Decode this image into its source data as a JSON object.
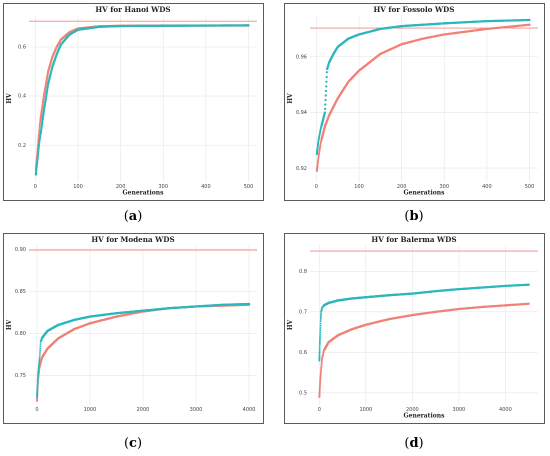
{
  "colors": {
    "series1": "#f08278",
    "series2": "#2bb7bd",
    "reference": "#ee8a86",
    "grid": "#e6e6e6",
    "frame": "#333333"
  },
  "chart_data": [
    {
      "type": "scatter",
      "title": "HV for Hanoi WDS",
      "xlabel": "Generations",
      "ylabel": "HV",
      "xlim": [
        -15,
        520
      ],
      "ylim": [
        0.05,
        0.73
      ],
      "xticks": [
        0,
        100,
        200,
        300,
        400,
        500
      ],
      "yticks": [
        0.2,
        0.4,
        0.6
      ],
      "ytick_labels": [
        "0.2",
        "0.4",
        "0.6"
      ],
      "reference_line": 0.705,
      "x_max": 500,
      "grid": true,
      "caption_letter": "a",
      "series": [
        {
          "x": [
            1,
            5,
            10,
            20,
            30,
            40,
            50,
            60,
            80,
            100,
            150,
            200,
            300,
            400,
            500
          ],
          "values": [
            0.1,
            0.18,
            0.28,
            0.4,
            0.5,
            0.56,
            0.6,
            0.63,
            0.66,
            0.675,
            0.684,
            0.686,
            0.687,
            0.687,
            0.687
          ]
        },
        {
          "x": [
            1,
            5,
            10,
            20,
            30,
            40,
            50,
            60,
            80,
            100,
            150,
            200,
            300,
            400,
            500
          ],
          "values": [
            0.08,
            0.14,
            0.22,
            0.34,
            0.45,
            0.52,
            0.57,
            0.61,
            0.65,
            0.67,
            0.682,
            0.685,
            0.686,
            0.687,
            0.688
          ]
        }
      ]
    },
    {
      "type": "scatter",
      "title": "HV for Fossolo WDS",
      "xlabel": "Generations",
      "ylabel": "HV",
      "xlim": [
        -15,
        520
      ],
      "ylim": [
        0.915,
        0.975
      ],
      "xticks": [
        0,
        100,
        200,
        300,
        400,
        500
      ],
      "yticks": [
        0.92,
        0.94,
        0.96
      ],
      "ytick_labels": [
        "0.92",
        "0.94",
        "0.96"
      ],
      "reference_line": 0.9703,
      "x_max": 500,
      "grid": true,
      "caption_letter": "b",
      "series": [
        {
          "x": [
            1,
            5,
            10,
            20,
            30,
            50,
            75,
            100,
            150,
            200,
            250,
            300,
            400,
            500
          ],
          "values": [
            0.919,
            0.924,
            0.929,
            0.935,
            0.939,
            0.945,
            0.951,
            0.955,
            0.961,
            0.9645,
            0.9665,
            0.968,
            0.97,
            0.9715
          ]
        },
        {
          "x": [
            1,
            5,
            10,
            15,
            20,
            25,
            30,
            40,
            50,
            75,
            100,
            150,
            200,
            300,
            400,
            500
          ],
          "values": [
            0.925,
            0.93,
            0.934,
            0.937,
            0.94,
            0.9555,
            0.958,
            0.961,
            0.9635,
            0.9665,
            0.968,
            0.97,
            0.971,
            0.972,
            0.9728,
            0.9732
          ]
        }
      ]
    },
    {
      "type": "scatter",
      "title": "HV for Modena WDS",
      "xlabel": "",
      "ylabel": "HV",
      "xlim": [
        -150,
        4150
      ],
      "ylim": [
        0.715,
        0.905
      ],
      "xticks": [
        0,
        1000,
        2000,
        3000,
        4000
      ],
      "yticks": [
        0.75,
        0.8,
        0.85,
        0.9
      ],
      "ytick_labels": [
        "0.75",
        "0.80",
        "0.85",
        "0.90"
      ],
      "reference_line": 0.899,
      "x_max": 4000,
      "grid": true,
      "caption_letter": "c",
      "series": [
        {
          "x": [
            1,
            20,
            50,
            100,
            200,
            400,
            700,
            1000,
            1500,
            2000,
            2500,
            3000,
            3500,
            4000
          ],
          "values": [
            0.72,
            0.745,
            0.76,
            0.772,
            0.782,
            0.794,
            0.805,
            0.812,
            0.82,
            0.826,
            0.83,
            0.832,
            0.833,
            0.834
          ]
        },
        {
          "x": [
            1,
            20,
            50,
            70,
            100,
            200,
            400,
            700,
            1000,
            1500,
            2000,
            2500,
            3000,
            3500,
            4000
          ],
          "values": [
            0.725,
            0.75,
            0.77,
            0.79,
            0.795,
            0.803,
            0.81,
            0.816,
            0.82,
            0.824,
            0.827,
            0.83,
            0.832,
            0.834,
            0.835
          ]
        }
      ]
    },
    {
      "type": "scatter",
      "title": "HV for Balerma WDS",
      "xlabel": "Generations",
      "ylabel": "HV",
      "xlim": [
        -200,
        4700
      ],
      "ylim": [
        0.47,
        0.865
      ],
      "xticks": [
        0,
        1000,
        2000,
        3000,
        4000
      ],
      "yticks": [
        0.5,
        0.6,
        0.7,
        0.8
      ],
      "ytick_labels": [
        "0.5",
        "0.6",
        "0.7",
        "0.8"
      ],
      "reference_line": 0.85,
      "x_max": 4500,
      "grid": true,
      "caption_letter": "d",
      "series": [
        {
          "x": [
            1,
            10,
            20,
            40,
            60,
            100,
            200,
            400,
            700,
            1000,
            1500,
            2000,
            2500,
            3000,
            3500,
            4000,
            4500
          ],
          "values": [
            0.49,
            0.51,
            0.53,
            0.56,
            0.585,
            0.605,
            0.625,
            0.642,
            0.657,
            0.668,
            0.682,
            0.692,
            0.7,
            0.707,
            0.712,
            0.716,
            0.72
          ]
        },
        {
          "x": [
            1,
            10,
            20,
            30,
            40,
            50,
            60,
            100,
            200,
            400,
            700,
            1000,
            1500,
            2000,
            2500,
            3000,
            3500,
            4000,
            4500
          ],
          "values": [
            0.58,
            0.62,
            0.65,
            0.68,
            0.7,
            0.705,
            0.71,
            0.716,
            0.722,
            0.728,
            0.733,
            0.736,
            0.741,
            0.745,
            0.751,
            0.756,
            0.76,
            0.764,
            0.767
          ]
        }
      ]
    }
  ]
}
